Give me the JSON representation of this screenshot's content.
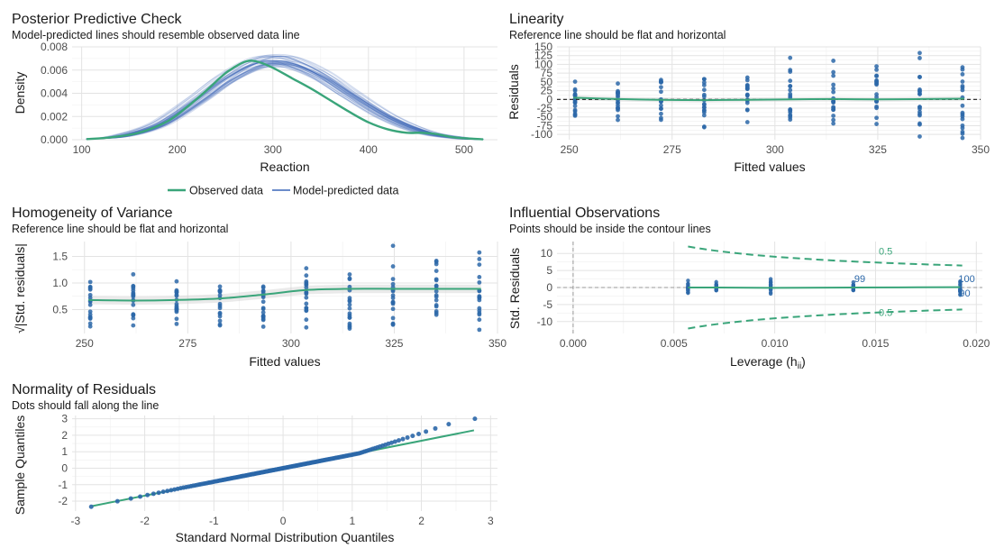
{
  "colors": {
    "observed": "#3aa57a",
    "predicted": "#3b66b8",
    "points": "#2b67a8",
    "grid": "#e3e3e3",
    "ribbon": "#d0d0d0",
    "contour": "#3aa57a",
    "refline": "#1a1a1a"
  },
  "chart_data": [
    {
      "type": "line",
      "title": "Posterior Predictive Check",
      "subtitle": "Model-predicted lines should resemble observed data line",
      "xlabel": "Reaction",
      "ylabel": "Density",
      "xlim": [
        90,
        535
      ],
      "ylim": [
        0,
        0.008
      ],
      "xticks": [
        100,
        200,
        300,
        400,
        500
      ],
      "yticks": [
        0.0,
        0.002,
        0.004,
        0.006,
        0.008
      ],
      "ytick_labels": [
        "0.000",
        "0.002",
        "0.004",
        "0.006",
        "0.008"
      ],
      "legend": {
        "position": "bottom",
        "items": [
          "Observed data",
          "Model-predicted data"
        ]
      },
      "series": [
        {
          "name": "Observed data",
          "x": [
            105,
            130,
            160,
            190,
            210,
            230,
            250,
            265,
            275,
            285,
            300,
            320,
            340,
            360,
            380,
            400,
            420,
            440,
            455,
            470,
            490,
            520
          ],
          "y": [
            5e-05,
            0.0002,
            0.0006,
            0.0016,
            0.0028,
            0.0042,
            0.0057,
            0.0065,
            0.0068,
            0.0067,
            0.0062,
            0.0053,
            0.0044,
            0.0034,
            0.0024,
            0.0015,
            0.0009,
            0.0006,
            0.0006,
            0.0005,
            0.0002,
            3e-05
          ]
        },
        {
          "name": "Model-predicted data",
          "x": [
            105,
            140,
            180,
            220,
            250,
            280,
            300,
            320,
            350,
            380,
            420,
            460,
            500,
            520
          ],
          "y": [
            5e-05,
            0.0003,
            0.0013,
            0.0034,
            0.0052,
            0.0065,
            0.0068,
            0.0066,
            0.0055,
            0.0039,
            0.0019,
            0.0006,
            0.0001,
            3e-05
          ]
        }
      ]
    },
    {
      "type": "scatter",
      "title": "Linearity",
      "subtitle": "Reference line should be flat and horizontal",
      "xlabel": "Fitted values",
      "ylabel": "Residuals",
      "xlim": [
        247,
        350
      ],
      "ylim": [
        -115,
        150
      ],
      "xticks": [
        250,
        275,
        300,
        325,
        350
      ],
      "yticks": [
        -100,
        -75,
        -50,
        -25,
        0,
        25,
        50,
        75,
        100,
        125,
        150
      ],
      "reference_line": 0,
      "groups_x": [
        251.4,
        261.8,
        272.3,
        282.8,
        293.3,
        303.7,
        314.2,
        324.7,
        335.2,
        345.6
      ],
      "smooth": {
        "x": [
          251,
          262,
          272,
          283,
          293,
          304,
          314,
          325,
          335,
          346
        ],
        "y": [
          5,
          1,
          -1,
          -2,
          -1,
          0,
          1,
          0,
          1,
          2
        ]
      }
    },
    {
      "type": "scatter",
      "title": "Homogeneity of Variance",
      "subtitle": "Reference line should be flat and horizontal",
      "xlabel": "Fitted values",
      "ylabel": "√|Std. residuals|",
      "xlim": [
        247,
        350
      ],
      "ylim": [
        0.05,
        1.78
      ],
      "xticks": [
        250,
        275,
        300,
        325,
        350
      ],
      "yticks": [
        0.5,
        1.0,
        1.5
      ],
      "ytick_labels": [
        "0.5",
        "1.0",
        "1.5"
      ],
      "groups_x": [
        251.4,
        261.8,
        272.3,
        282.8,
        293.3,
        303.7,
        314.2,
        324.7,
        335.2,
        345.6
      ],
      "smooth": {
        "x": [
          251,
          262,
          272,
          283,
          293,
          304,
          314,
          325,
          335,
          346
        ],
        "y": [
          0.68,
          0.67,
          0.68,
          0.71,
          0.78,
          0.87,
          0.89,
          0.89,
          0.89,
          0.89
        ]
      }
    },
    {
      "type": "scatter",
      "title": "Influential Observations",
      "subtitle": "Points should be inside the contour lines",
      "xlabel": "Leverage (h",
      "xlabel_sub": "ii",
      "xlabel_end": ")",
      "ylabel": "Std. Residuals",
      "xlim": [
        -0.0008,
        0.0203
      ],
      "ylim": [
        -13.5,
        13.5
      ],
      "xticks": [
        0.0,
        0.005,
        0.01,
        0.015,
        0.02
      ],
      "xtick_labels": [
        "0.000",
        "0.005",
        "0.010",
        "0.015",
        "0.020"
      ],
      "yticks": [
        -10,
        -5,
        0,
        5,
        10
      ],
      "cook_label": "0.5",
      "point_labels": [
        "99",
        "100",
        "90"
      ],
      "leverage_groups": [
        0.0057,
        0.0071,
        0.0098,
        0.0139,
        0.0192
      ],
      "smooth": {
        "x": [
          0.0057,
          0.0071,
          0.0098,
          0.0139,
          0.0192
        ],
        "y": [
          0.0,
          0.0,
          -0.1,
          0.0,
          0.1
        ]
      }
    },
    {
      "type": "scatter",
      "title": "Normality of Residuals",
      "subtitle": "Dots should fall along the line",
      "xlabel": "Standard Normal Distribution Quantiles",
      "ylabel": "Sample Quantiles",
      "xlim": [
        -3.05,
        3.1
      ],
      "ylim": [
        -2.6,
        3.2
      ],
      "xticks": [
        -3,
        -2,
        -1,
        0,
        1,
        2,
        3
      ],
      "yticks": [
        -2,
        -1,
        0,
        1,
        2,
        3
      ],
      "reference_line": {
        "x": [
          -2.76,
          2.76
        ],
        "y": [
          -2.3,
          2.3
        ]
      }
    }
  ]
}
